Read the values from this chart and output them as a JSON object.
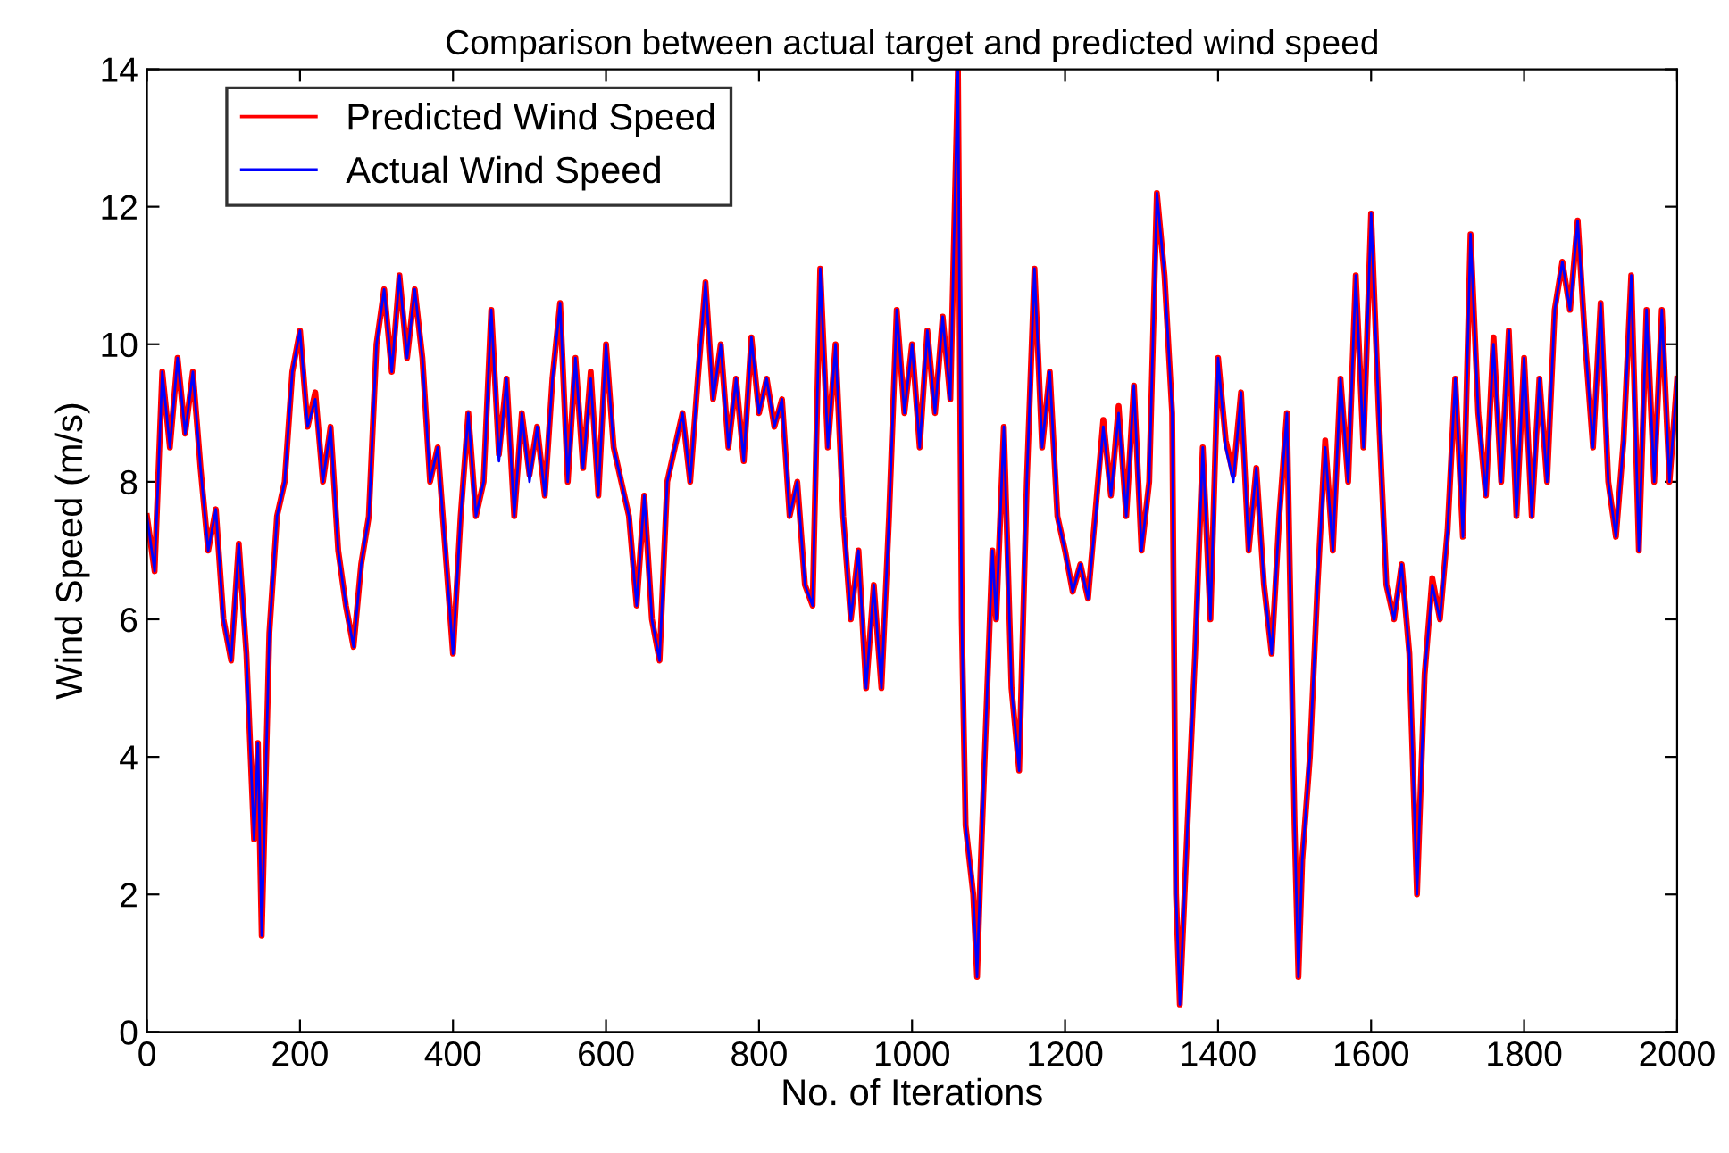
{
  "chart_data": {
    "type": "line",
    "title": "Comparison between actual target and predicted wind speed",
    "xlabel": "No. of Iterations",
    "ylabel": "Wind Speed (m/s)",
    "x": [
      0,
      10,
      20,
      30,
      40,
      50,
      60,
      70,
      80,
      90,
      100,
      110,
      120,
      130,
      140,
      145,
      150,
      160,
      170,
      180,
      190,
      200,
      210,
      220,
      230,
      240,
      250,
      260,
      270,
      280,
      290,
      300,
      310,
      320,
      330,
      340,
      350,
      360,
      370,
      380,
      390,
      400,
      410,
      420,
      430,
      440,
      450,
      460,
      470,
      480,
      490,
      500,
      510,
      520,
      530,
      540,
      550,
      560,
      570,
      580,
      590,
      600,
      610,
      620,
      630,
      640,
      650,
      660,
      670,
      680,
      690,
      700,
      710,
      720,
      730,
      740,
      750,
      760,
      770,
      780,
      790,
      800,
      810,
      820,
      830,
      840,
      850,
      860,
      870,
      880,
      890,
      900,
      910,
      920,
      930,
      940,
      950,
      960,
      970,
      980,
      990,
      1000,
      1010,
      1020,
      1030,
      1040,
      1050,
      1060,
      1065,
      1070,
      1080,
      1085,
      1090,
      1100,
      1105,
      1110,
      1120,
      1130,
      1140,
      1150,
      1160,
      1170,
      1180,
      1190,
      1200,
      1210,
      1220,
      1230,
      1240,
      1250,
      1260,
      1270,
      1280,
      1290,
      1300,
      1310,
      1320,
      1330,
      1340,
      1345,
      1350,
      1360,
      1370,
      1380,
      1390,
      1400,
      1410,
      1420,
      1430,
      1440,
      1450,
      1460,
      1470,
      1480,
      1490,
      1500,
      1505,
      1510,
      1520,
      1530,
      1540,
      1550,
      1560,
      1570,
      1580,
      1590,
      1600,
      1610,
      1620,
      1630,
      1640,
      1650,
      1660,
      1670,
      1680,
      1690,
      1700,
      1710,
      1720,
      1730,
      1740,
      1750,
      1760,
      1770,
      1780,
      1790,
      1800,
      1810,
      1820,
      1830,
      1840,
      1850,
      1860,
      1870,
      1880,
      1890,
      1900,
      1910,
      1920,
      1930,
      1940,
      1950,
      1960,
      1970,
      1980,
      1990,
      2000
    ],
    "series": [
      {
        "name": "Predicted Wind Speed",
        "color": "#ff0000",
        "values": [
          7.5,
          6.7,
          9.6,
          8.5,
          9.8,
          8.7,
          9.6,
          8.2,
          7.0,
          7.6,
          6.0,
          5.4,
          7.1,
          5.5,
          2.8,
          4.2,
          1.4,
          5.8,
          7.5,
          8.0,
          9.6,
          10.2,
          8.8,
          9.3,
          8.0,
          8.8,
          7.0,
          6.2,
          5.6,
          6.8,
          7.5,
          10.0,
          10.8,
          9.6,
          11.0,
          9.8,
          10.8,
          9.8,
          8.0,
          8.5,
          7.0,
          5.5,
          7.5,
          9.0,
          7.5,
          8.0,
          10.5,
          8.4,
          9.5,
          7.5,
          9.0,
          8.1,
          8.8,
          7.8,
          9.5,
          10.6,
          8.0,
          9.8,
          8.2,
          9.6,
          7.8,
          10.0,
          8.5,
          8.0,
          7.5,
          6.2,
          7.8,
          6.0,
          5.4,
          8.0,
          8.5,
          9.0,
          8.0,
          9.5,
          10.9,
          9.2,
          10.0,
          8.5,
          9.5,
          8.3,
          10.1,
          9.0,
          9.5,
          8.8,
          9.2,
          7.5,
          8.0,
          6.5,
          6.2,
          11.1,
          8.5,
          10.0,
          7.5,
          6.0,
          7.0,
          5.0,
          6.5,
          5.0,
          7.5,
          10.5,
          9.0,
          10.0,
          8.5,
          10.2,
          9.0,
          10.4,
          9.2,
          14.0,
          6.0,
          3.0,
          2.0,
          0.8,
          2.5,
          5.5,
          7.0,
          6.0,
          8.8,
          5.0,
          3.8,
          8.0,
          11.1,
          8.5,
          9.6,
          7.5,
          7.0,
          6.4,
          6.8,
          6.3,
          7.6,
          8.9,
          7.8,
          9.1,
          7.5,
          9.4,
          7.0,
          8.0,
          12.2,
          11.0,
          9.0,
          2.0,
          0.4,
          3.0,
          5.5,
          8.5,
          6.0,
          9.8,
          8.6,
          8.1,
          9.3,
          7.0,
          8.2,
          6.5,
          5.5,
          7.5,
          9.0,
          3.0,
          0.8,
          2.5,
          4.0,
          6.5,
          8.6,
          7.0,
          9.5,
          8.0,
          11.0,
          8.5,
          11.9,
          9.0,
          6.5,
          6.0,
          6.8,
          5.5,
          2.0,
          5.2,
          6.6,
          6.0,
          7.3,
          9.5,
          7.2,
          11.6,
          9.0,
          7.8,
          10.1,
          8.0,
          10.2,
          7.5,
          9.8,
          7.5,
          9.5,
          8.0,
          10.5,
          11.2,
          10.5,
          11.8,
          10.0,
          8.5,
          10.6,
          8.0,
          7.2,
          8.6,
          11.0,
          7.0,
          10.5,
          8.0,
          10.5,
          8.0,
          9.5
        ]
      },
      {
        "name": "Actual Wind Speed",
        "color": "#0000ff",
        "values": [
          7.5,
          6.7,
          9.6,
          8.5,
          9.8,
          8.7,
          9.6,
          8.2,
          7.0,
          7.6,
          6.0,
          5.4,
          7.1,
          5.5,
          2.8,
          4.2,
          1.4,
          5.8,
          7.5,
          8.0,
          9.6,
          10.2,
          8.8,
          9.2,
          8.0,
          8.8,
          7.0,
          6.2,
          5.6,
          6.8,
          7.5,
          10.0,
          10.8,
          9.6,
          11.0,
          9.8,
          10.8,
          9.8,
          8.0,
          8.5,
          7.0,
          5.5,
          7.5,
          9.0,
          7.5,
          8.0,
          10.5,
          8.3,
          9.5,
          7.5,
          9.0,
          8.0,
          8.8,
          7.8,
          9.5,
          10.6,
          8.0,
          9.8,
          8.2,
          9.5,
          7.8,
          10.0,
          8.5,
          8.0,
          7.5,
          6.2,
          7.8,
          6.0,
          5.4,
          8.0,
          8.5,
          9.0,
          8.0,
          9.5,
          10.9,
          9.2,
          10.0,
          8.5,
          9.5,
          8.3,
          10.1,
          9.0,
          9.5,
          8.8,
          9.2,
          7.5,
          8.0,
          6.5,
          6.2,
          11.1,
          8.5,
          10.0,
          7.5,
          6.0,
          7.0,
          5.0,
          6.5,
          5.0,
          7.5,
          10.5,
          9.0,
          10.0,
          8.5,
          10.2,
          9.0,
          10.4,
          9.2,
          14.0,
          6.0,
          3.0,
          2.0,
          0.8,
          2.5,
          5.5,
          7.0,
          6.0,
          8.8,
          5.0,
          3.8,
          8.0,
          11.1,
          8.5,
          9.6,
          7.5,
          7.0,
          6.4,
          6.8,
          6.3,
          7.5,
          8.8,
          7.8,
          9.0,
          7.5,
          9.4,
          7.0,
          8.0,
          12.2,
          11.0,
          9.0,
          2.0,
          0.4,
          3.0,
          5.5,
          8.5,
          6.0,
          9.8,
          8.5,
          8.0,
          9.3,
          7.0,
          8.2,
          6.5,
          5.5,
          7.5,
          9.0,
          3.0,
          0.8,
          2.5,
          4.0,
          6.5,
          8.5,
          7.0,
          9.5,
          8.0,
          11.0,
          8.5,
          11.9,
          9.0,
          6.5,
          6.0,
          6.8,
          5.5,
          2.0,
          5.2,
          6.5,
          6.0,
          7.3,
          9.5,
          7.2,
          11.6,
          9.0,
          7.8,
          10.0,
          8.0,
          10.2,
          7.5,
          9.8,
          7.5,
          9.5,
          8.0,
          10.5,
          11.2,
          10.5,
          11.8,
          10.0,
          8.5,
          10.6,
          8.0,
          7.2,
          8.6,
          11.0,
          7.0,
          10.5,
          8.0,
          10.5,
          8.0,
          9.5
        ]
      }
    ],
    "xlim": [
      0,
      2000
    ],
    "ylim": [
      0,
      14
    ],
    "xticks": [
      0,
      200,
      400,
      600,
      800,
      1000,
      1200,
      1400,
      1600,
      1800,
      2000
    ],
    "yticks": [
      0,
      2,
      4,
      6,
      8,
      10,
      12,
      14
    ],
    "grid": false,
    "legend": "top left",
    "marker": "none",
    "line_style": "solid"
  }
}
